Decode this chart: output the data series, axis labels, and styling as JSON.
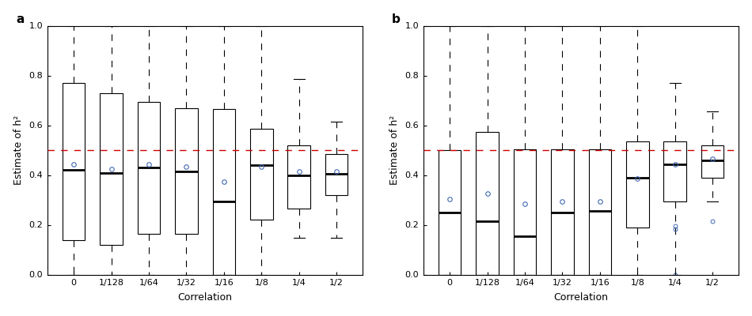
{
  "categories": [
    "0",
    "1/128",
    "1/64",
    "1/32",
    "1/16",
    "1/8",
    "1/4",
    "1/2"
  ],
  "panel_a": {
    "label": "a",
    "ylabel": "Estimate of h²",
    "xlabel": "Correlation",
    "dashed_line": 0.5,
    "boxes": [
      {
        "q1": 0.14,
        "median": 0.42,
        "q3": 0.77,
        "whislo": 0.0,
        "whishi": 1.0,
        "mean": 0.445
      },
      {
        "q1": 0.12,
        "median": 0.41,
        "q3": 0.73,
        "whislo": 0.0,
        "whishi": 1.0,
        "mean": 0.425
      },
      {
        "q1": 0.165,
        "median": 0.43,
        "q3": 0.695,
        "whislo": 0.0,
        "whishi": 1.0,
        "mean": 0.445
      },
      {
        "q1": 0.165,
        "median": 0.415,
        "q3": 0.67,
        "whislo": 0.0,
        "whishi": 1.0,
        "mean": 0.435
      },
      {
        "q1": 0.0,
        "median": 0.295,
        "q3": 0.665,
        "whislo": 0.0,
        "whishi": 1.0,
        "mean": 0.375
      },
      {
        "q1": 0.22,
        "median": 0.44,
        "q3": 0.585,
        "whislo": 0.0,
        "whishi": 1.0,
        "mean": 0.435
      },
      {
        "q1": 0.265,
        "median": 0.4,
        "q3": 0.52,
        "whislo": 0.15,
        "whishi": 0.785,
        "mean": 0.415
      },
      {
        "q1": 0.32,
        "median": 0.405,
        "q3": 0.485,
        "whislo": 0.15,
        "whishi": 0.615,
        "mean": 0.415
      }
    ],
    "outliers": [
      [],
      [],
      [],
      [],
      [],
      [],
      [],
      []
    ]
  },
  "panel_b": {
    "label": "b",
    "ylabel": "Estimate of h²",
    "xlabel": "Correlation",
    "dashed_line": 0.5,
    "boxes": [
      {
        "q1": 0.0,
        "median": 0.25,
        "q3": 0.5,
        "whislo": 0.0,
        "whishi": 1.0,
        "mean": 0.305
      },
      {
        "q1": 0.0,
        "median": 0.215,
        "q3": 0.575,
        "whislo": 0.0,
        "whishi": 1.0,
        "mean": 0.325
      },
      {
        "q1": 0.0,
        "median": 0.155,
        "q3": 0.505,
        "whislo": 0.0,
        "whishi": 1.0,
        "mean": 0.285
      },
      {
        "q1": 0.0,
        "median": 0.25,
        "q3": 0.505,
        "whislo": 0.0,
        "whishi": 1.0,
        "mean": 0.295
      },
      {
        "q1": 0.0,
        "median": 0.255,
        "q3": 0.505,
        "whislo": 0.0,
        "whishi": 1.0,
        "mean": 0.295
      },
      {
        "q1": 0.19,
        "median": 0.39,
        "q3": 0.535,
        "whislo": 0.0,
        "whishi": 1.0,
        "mean": 0.385
      },
      {
        "q1": 0.295,
        "median": 0.445,
        "q3": 0.535,
        "whislo": 0.0,
        "whishi": 0.77,
        "mean": 0.445
      },
      {
        "q1": 0.39,
        "median": 0.46,
        "q3": 0.52,
        "whislo": 0.295,
        "whishi": 0.655,
        "mean": 0.465
      }
    ],
    "outliers": [
      [],
      [],
      [],
      [],
      [],
      [],
      [
        0.0,
        0.185,
        0.195
      ],
      [
        0.215
      ]
    ]
  },
  "box_color": "#ffffff",
  "box_edgecolor": "#000000",
  "median_color": "#000000",
  "mean_marker_color": "#4169b0",
  "mean_marker_size": 4,
  "dashed_line_color": "#cc0000",
  "label_fontsize": 9,
  "tick_fontsize": 8,
  "panel_label_fontsize": 11,
  "ylim": [
    0.0,
    1.0
  ],
  "yticks": [
    0.0,
    0.2,
    0.4,
    0.6,
    0.8,
    1.0
  ]
}
